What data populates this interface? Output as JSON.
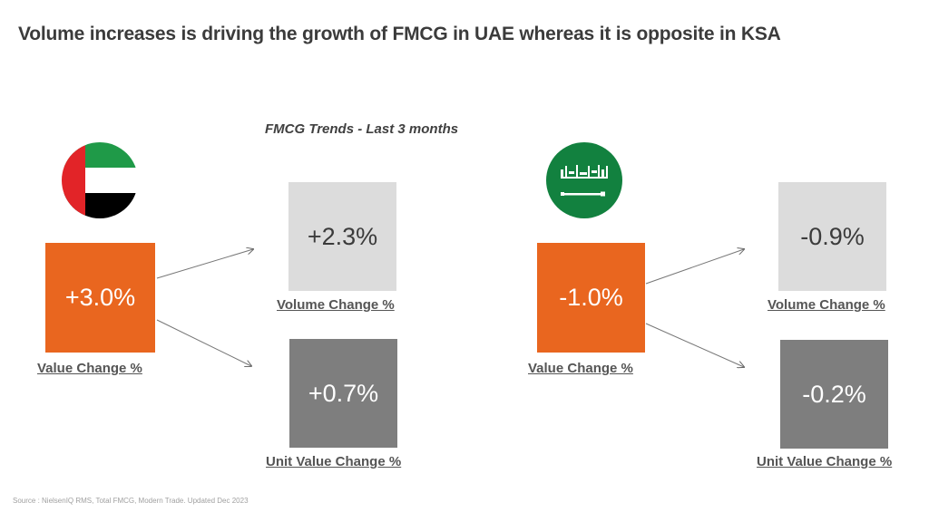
{
  "title": "Volume increases is driving the growth of FMCG in UAE whereas it is opposite in KSA",
  "subtitle": "FMCG Trends - Last 3 months",
  "uae": {
    "flag_icon": "uae-flag-icon",
    "value_change": "+3.0%",
    "value_change_label": "Value Change %",
    "volume_change": "+2.3%",
    "volume_change_label": "Volume Change %",
    "unit_value_change": "+0.7%",
    "unit_value_change_label": "Unit Value Change %"
  },
  "ksa": {
    "flag_icon": "saudi-flag-icon",
    "value_change": "-1.0%",
    "value_change_label": "Value Change %",
    "volume_change": "-0.9%",
    "volume_change_label": "Volume Change %",
    "unit_value_change": "-0.2%",
    "unit_value_change_label": "Unit Value Change %"
  },
  "source": "Source : NielsenIQ RMS,  Total FMCG,  Modern Trade. Updated Dec 2023",
  "colors": {
    "orange": "#e9661f",
    "light_gray": "#dcdcdc",
    "dark_gray": "#7e7e7e",
    "uae_green": "#1f9a48",
    "uae_red": "#e22428",
    "ksa_green": "#12813f"
  }
}
